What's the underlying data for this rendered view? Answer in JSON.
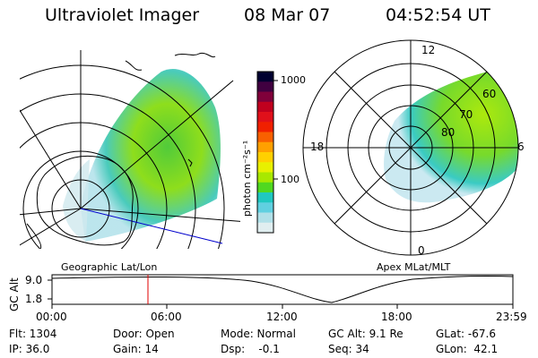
{
  "header": {
    "instrument": "Ultraviolet Imager",
    "date": "08 Mar 07",
    "time": "04:52:54 UT"
  },
  "colorbar": {
    "unit_label": "photon cm⁻²s⁻¹",
    "ticks": [
      "1000",
      "100"
    ],
    "colors": [
      "#000030",
      "#400040",
      "#80003a",
      "#c0001e",
      "#e0101a",
      "#f02000",
      "#f86000",
      "#ffa000",
      "#ffd000",
      "#e8f000",
      "#a8e800",
      "#50d820",
      "#20c8c0",
      "#60d0e0",
      "#b0e0e8",
      "#e0eef0"
    ]
  },
  "left_map": {
    "projection_label": "Geographic Lat/Lon"
  },
  "right_map": {
    "projection_label": "Apex MLat/MLT",
    "lat_labels": [
      "60",
      "70",
      "80"
    ],
    "mlt_labels": {
      "top": "12",
      "left": "18",
      "right": "6",
      "bottom": "0"
    }
  },
  "altitude_plot": {
    "axis_label": "GC Alt",
    "y_ticks": [
      "9.0",
      "1.8"
    ],
    "x_ticks": [
      "00:00",
      "06:00",
      "12:00",
      "18:00",
      "23:59"
    ],
    "current_time_marker": "04:52"
  },
  "info": {
    "flt": "Flt: 1304",
    "ip": "IP: 36.0",
    "door": "Door: Open",
    "gain": "Gain: 14",
    "mode": "Mode: Normal",
    "dsp": "Dsp:    -0.1",
    "gcalt": "GC Alt: 9.1 Re",
    "seq": "Seq: 34",
    "glat": "GLat: -67.6",
    "glon": "GLon:  42.1"
  }
}
